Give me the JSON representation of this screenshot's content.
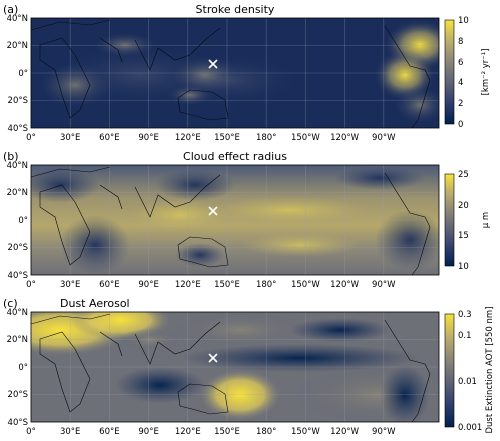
{
  "chart_data": [
    {
      "type": "heatmap",
      "panel_label": "(a)",
      "title": "Stroke density",
      "colorbar": {
        "label": "[km⁻² yr⁻¹]",
        "ticks": [
          "0",
          "2",
          "4",
          "6",
          "8",
          "10"
        ],
        "range": [
          0,
          10
        ],
        "scale": "linear"
      },
      "x_ticks": [
        "0°",
        "30°E",
        "60°E",
        "90°E",
        "120°E",
        "150°E",
        "180°",
        "150°W",
        "120°W",
        "90°W"
      ],
      "y_ticks": [
        "40°N",
        "20°N",
        "0°",
        "20°S",
        "40°S"
      ],
      "marker": {
        "symbol": "×",
        "lon": 135,
        "lat": 7
      },
      "colormap": [
        "#00204d",
        "#2f3e6b",
        "#5f6374",
        "#8a8678",
        "#bcae6b",
        "#f8e13b"
      ],
      "grid": true
    },
    {
      "type": "heatmap",
      "panel_label": "(b)",
      "title": "Cloud effect radius",
      "colorbar": {
        "label": "μ m",
        "ticks": [
          "10",
          "15",
          "20",
          "25"
        ],
        "range": [
          10,
          25
        ],
        "scale": "linear"
      },
      "x_ticks": [
        "0°",
        "30°E",
        "60°E",
        "90°E",
        "120°E",
        "150°E",
        "180°",
        "150°W",
        "120°W",
        "90°W"
      ],
      "y_ticks": [
        "40°N",
        "20°N",
        "0°",
        "20°S",
        "40°S"
      ],
      "marker": {
        "symbol": "×",
        "lon": 135,
        "lat": 7
      },
      "colormap": [
        "#00204d",
        "#2f3e6b",
        "#5f6374",
        "#8a8678",
        "#bcae6b",
        "#f8e13b"
      ],
      "grid": true
    },
    {
      "type": "heatmap",
      "panel_label": "(c)",
      "title": "Dust Aerosol",
      "colorbar": {
        "label": "Dust Extinction AOT [550 nm]",
        "ticks": [
          "0.001",
          "0.01",
          "0.1",
          "0.3"
        ],
        "range": [
          0.001,
          0.3
        ],
        "scale": "log"
      },
      "x_ticks": [
        "0°",
        "30°E",
        "60°E",
        "90°E",
        "120°E",
        "150°E",
        "180°",
        "150°W",
        "120°W",
        "90°W"
      ],
      "y_ticks": [
        "40°N",
        "20°N",
        "0°",
        "20°S",
        "40°S"
      ],
      "marker": {
        "symbol": "×",
        "lon": 135,
        "lat": 7
      },
      "colormap": [
        "#00204d",
        "#2f3e6b",
        "#5f6374",
        "#8a8678",
        "#bcae6b",
        "#f8e13b"
      ],
      "grid": true
    }
  ]
}
